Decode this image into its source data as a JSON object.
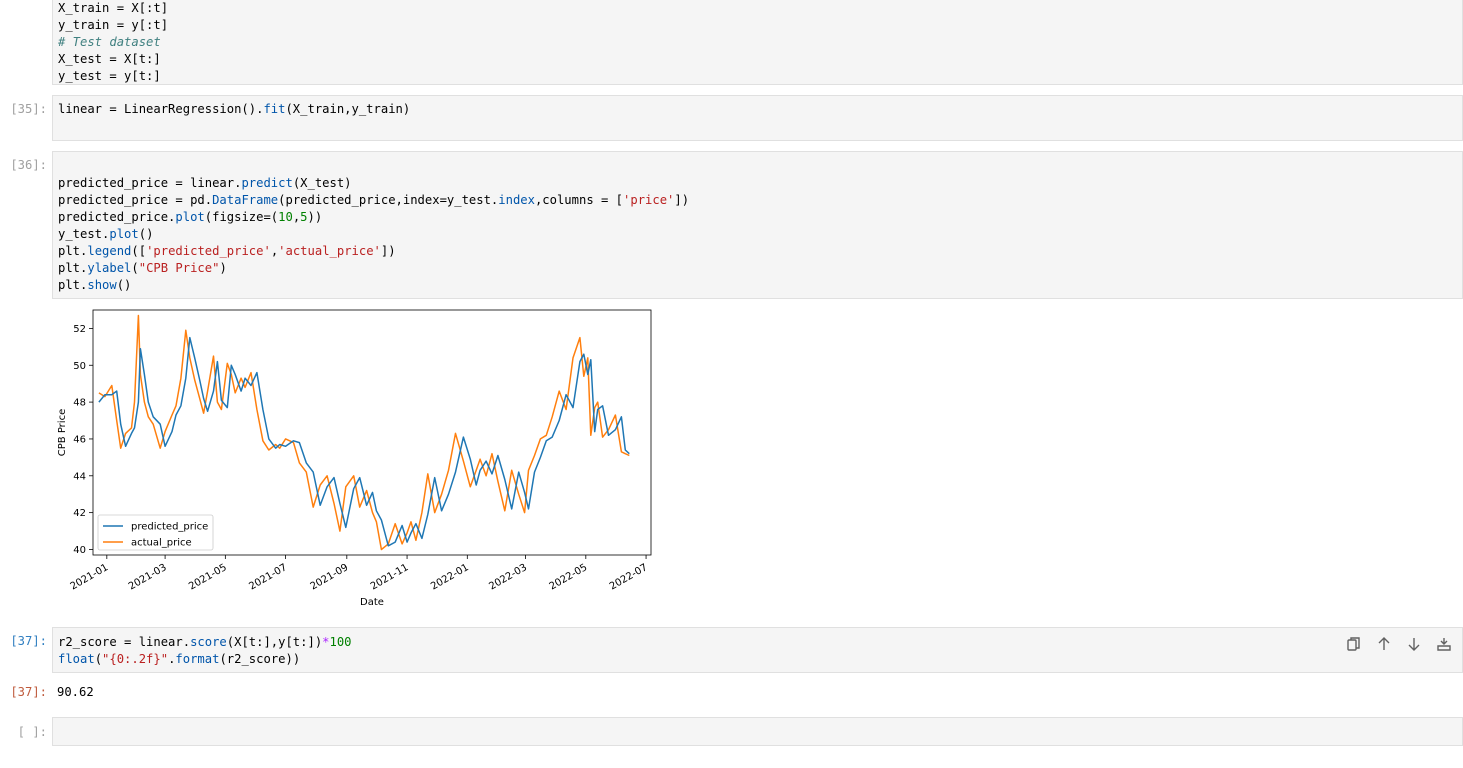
{
  "cells": {
    "top_cell": {
      "lines": [
        {
          "tokens": [
            {
              "t": "X_train = X[:t]",
              "c": ""
            }
          ]
        },
        {
          "tokens": [
            {
              "t": "y_train = y[:t]",
              "c": ""
            }
          ]
        },
        {
          "tokens": [
            {
              "t": "# Test dataset",
              "c": "cm"
            }
          ]
        },
        {
          "tokens": [
            {
              "t": "X_test = X[t:]",
              "c": ""
            }
          ]
        },
        {
          "tokens": [
            {
              "t": "y_test = y[t:]",
              "c": ""
            }
          ]
        }
      ]
    },
    "cell_35": {
      "prompt": "[35]:",
      "lines": [
        {
          "tokens": [
            {
              "t": "linear = LinearRegression().",
              "c": ""
            },
            {
              "t": "fit",
              "c": "ak"
            },
            {
              "t": "(X_train,y_train)",
              "c": ""
            }
          ]
        }
      ]
    },
    "cell_36": {
      "prompt": "[36]:",
      "lines": [
        {
          "tokens": [
            {
              "t": "",
              "c": ""
            }
          ]
        },
        {
          "tokens": [
            {
              "t": "predicted_price = linear.",
              "c": ""
            },
            {
              "t": "predict",
              "c": "ak"
            },
            {
              "t": "(X_test)",
              "c": ""
            }
          ]
        },
        {
          "tokens": [
            {
              "t": "predicted_price = pd.",
              "c": ""
            },
            {
              "t": "DataFrame",
              "c": "ak"
            },
            {
              "t": "(predicted_price,index=y_test.",
              "c": ""
            },
            {
              "t": "index",
              "c": "ak"
            },
            {
              "t": ",columns = [",
              "c": ""
            },
            {
              "t": "'price'",
              "c": "st"
            },
            {
              "t": "])",
              "c": ""
            }
          ]
        },
        {
          "tokens": [
            {
              "t": "predicted_price.",
              "c": ""
            },
            {
              "t": "plot",
              "c": "ak"
            },
            {
              "t": "(figsize=(",
              "c": ""
            },
            {
              "t": "10",
              "c": "nm"
            },
            {
              "t": ",",
              "c": ""
            },
            {
              "t": "5",
              "c": "nm"
            },
            {
              "t": "))",
              "c": ""
            }
          ]
        },
        {
          "tokens": [
            {
              "t": "y_test.",
              "c": ""
            },
            {
              "t": "plot",
              "c": "ak"
            },
            {
              "t": "()",
              "c": ""
            }
          ]
        },
        {
          "tokens": [
            {
              "t": "plt.",
              "c": ""
            },
            {
              "t": "legend",
              "c": "ak"
            },
            {
              "t": "([",
              "c": ""
            },
            {
              "t": "'predicted_price'",
              "c": "st"
            },
            {
              "t": ",",
              "c": ""
            },
            {
              "t": "'actual_price'",
              "c": "st"
            },
            {
              "t": "])",
              "c": ""
            }
          ]
        },
        {
          "tokens": [
            {
              "t": "plt.",
              "c": ""
            },
            {
              "t": "ylabel",
              "c": "ak"
            },
            {
              "t": "(",
              "c": ""
            },
            {
              "t": "\"CPB Price\"",
              "c": "st"
            },
            {
              "t": ")",
              "c": ""
            }
          ]
        },
        {
          "tokens": [
            {
              "t": "plt.",
              "c": ""
            },
            {
              "t": "show",
              "c": "ak"
            },
            {
              "t": "()",
              "c": ""
            }
          ]
        }
      ]
    },
    "cell_37": {
      "prompt": "[37]:",
      "output_prompt": "[37]:",
      "output": "90.62",
      "lines": [
        {
          "tokens": [
            {
              "t": "r2_score = linear.",
              "c": ""
            },
            {
              "t": "score",
              "c": "ak"
            },
            {
              "t": "(X[t:],y[t:])",
              "c": ""
            },
            {
              "t": "*",
              "c": "op"
            },
            {
              "t": "100",
              "c": "nm"
            }
          ]
        },
        {
          "tokens": [
            {
              "t": "float",
              "c": "ak"
            },
            {
              "t": "(",
              "c": ""
            },
            {
              "t": "\"{0:.2f}\"",
              "c": "st"
            },
            {
              "t": ".",
              "c": ""
            },
            {
              "t": "format",
              "c": "ak"
            },
            {
              "t": "(r2_score))",
              "c": ""
            }
          ]
        }
      ]
    },
    "empty_cell": {
      "prompt": "[ ]:"
    }
  },
  "toolbar": {
    "icons": [
      "duplicate-icon",
      "move-up-icon",
      "move-down-icon",
      "insert-below-icon"
    ]
  },
  "chart_data": {
    "type": "line",
    "title": "",
    "xlabel": "Date",
    "ylabel": "CPB Price",
    "ylim": [
      39.7,
      53.0
    ],
    "yticks": [
      40,
      42,
      44,
      46,
      48,
      50,
      52
    ],
    "xlim": [
      "2020-12-18",
      "2022-07-06"
    ],
    "xticks": [
      "2021-01",
      "2021-03",
      "2021-05",
      "2021-07",
      "2021-09",
      "2021-11",
      "2022-01",
      "2022-03",
      "2022-05",
      "2022-07"
    ],
    "legend_position": "lower-left",
    "grid": false,
    "colors": {
      "predicted_price": "#1f77b4",
      "actual_price": "#ff7f0e"
    },
    "series": [
      {
        "name": "actual_price",
        "x": [
          "2020-12-24",
          "2020-12-30",
          "2021-01-06",
          "2021-01-11",
          "2021-01-15",
          "2021-01-20",
          "2021-01-26",
          "2021-01-29",
          "2021-02-02",
          "2021-02-04",
          "2021-02-08",
          "2021-02-12",
          "2021-02-17",
          "2021-02-24",
          "2021-03-01",
          "2021-03-08",
          "2021-03-12",
          "2021-03-17",
          "2021-03-22",
          "2021-03-26",
          "2021-03-31",
          "2021-04-05",
          "2021-04-09",
          "2021-04-13",
          "2021-04-19",
          "2021-04-23",
          "2021-04-27",
          "2021-05-03",
          "2021-05-07",
          "2021-05-11",
          "2021-05-17",
          "2021-05-21",
          "2021-05-27",
          "2021-06-02",
          "2021-06-08",
          "2021-06-14",
          "2021-06-21",
          "2021-06-25",
          "2021-07-01",
          "2021-07-09",
          "2021-07-15",
          "2021-07-22",
          "2021-07-29",
          "2021-08-05",
          "2021-08-12",
          "2021-08-19",
          "2021-08-25",
          "2021-08-31",
          "2021-09-08",
          "2021-09-14",
          "2021-09-21",
          "2021-09-27",
          "2021-10-01",
          "2021-10-06",
          "2021-10-13",
          "2021-10-20",
          "2021-10-27",
          "2021-11-01",
          "2021-11-05",
          "2021-11-10",
          "2021-11-16",
          "2021-11-22",
          "2021-11-29",
          "2021-12-06",
          "2021-12-13",
          "2021-12-20",
          "2021-12-28",
          "2022-01-04",
          "2022-01-10",
          "2022-01-14",
          "2022-01-20",
          "2022-01-26",
          "2022-02-01",
          "2022-02-08",
          "2022-02-15",
          "2022-02-22",
          "2022-02-28",
          "2022-03-04",
          "2022-03-10",
          "2022-03-16",
          "2022-03-22",
          "2022-03-28",
          "2022-04-04",
          "2022-04-11",
          "2022-04-18",
          "2022-04-25",
          "2022-04-29",
          "2022-05-03",
          "2022-05-06",
          "2022-05-10",
          "2022-05-13",
          "2022-05-18",
          "2022-05-24",
          "2022-05-31",
          "2022-06-06",
          "2022-06-10",
          "2022-06-14"
        ],
        "y": [
          48.5,
          48.3,
          48.9,
          47.0,
          45.5,
          46.3,
          46.6,
          48.0,
          52.7,
          49.5,
          48.0,
          47.2,
          46.8,
          45.5,
          46.4,
          47.3,
          47.8,
          49.3,
          51.9,
          50.4,
          49.2,
          48.2,
          47.4,
          48.6,
          50.5,
          48.0,
          47.6,
          50.1,
          49.5,
          48.5,
          49.3,
          48.8,
          49.6,
          47.6,
          45.9,
          45.4,
          45.7,
          45.5,
          46.0,
          45.8,
          44.7,
          44.2,
          42.3,
          43.5,
          44.0,
          42.5,
          41.0,
          43.4,
          44.0,
          42.3,
          43.2,
          42.0,
          41.5,
          40.0,
          40.3,
          41.4,
          40.3,
          40.9,
          41.5,
          40.5,
          42.0,
          44.1,
          42.0,
          43.0,
          44.3,
          46.3,
          44.8,
          43.4,
          44.3,
          44.9,
          44.0,
          45.2,
          43.7,
          42.1,
          44.3,
          43.0,
          42.0,
          44.3,
          45.1,
          46.0,
          46.2,
          47.2,
          48.6,
          47.6,
          50.4,
          51.5,
          49.4,
          50.4,
          46.2,
          47.7,
          48.0,
          46.1,
          46.5,
          47.3,
          45.3,
          45.2,
          45.1
        ]
      },
      {
        "name": "predicted_price",
        "x": [
          "2020-12-24",
          "2020-12-30",
          "2021-01-06",
          "2021-01-11",
          "2021-01-15",
          "2021-01-20",
          "2021-01-26",
          "2021-01-29",
          "2021-02-02",
          "2021-02-04",
          "2021-02-08",
          "2021-02-12",
          "2021-02-17",
          "2021-02-24",
          "2021-03-01",
          "2021-03-08",
          "2021-03-12",
          "2021-03-17",
          "2021-03-22",
          "2021-03-26",
          "2021-03-31",
          "2021-04-05",
          "2021-04-09",
          "2021-04-13",
          "2021-04-19",
          "2021-04-23",
          "2021-04-27",
          "2021-05-03",
          "2021-05-07",
          "2021-05-11",
          "2021-05-17",
          "2021-05-21",
          "2021-05-27",
          "2021-06-02",
          "2021-06-08",
          "2021-06-14",
          "2021-06-21",
          "2021-06-25",
          "2021-07-01",
          "2021-07-09",
          "2021-07-15",
          "2021-07-22",
          "2021-07-29",
          "2021-08-05",
          "2021-08-12",
          "2021-08-19",
          "2021-08-25",
          "2021-08-31",
          "2021-09-08",
          "2021-09-14",
          "2021-09-21",
          "2021-09-27",
          "2021-10-01",
          "2021-10-06",
          "2021-10-13",
          "2021-10-20",
          "2021-10-27",
          "2021-11-01",
          "2021-11-05",
          "2021-11-10",
          "2021-11-16",
          "2021-11-22",
          "2021-11-29",
          "2021-12-06",
          "2021-12-13",
          "2021-12-20",
          "2021-12-28",
          "2022-01-04",
          "2022-01-10",
          "2022-01-14",
          "2022-01-20",
          "2022-01-26",
          "2022-02-01",
          "2022-02-08",
          "2022-02-15",
          "2022-02-22",
          "2022-02-28",
          "2022-03-04",
          "2022-03-10",
          "2022-03-16",
          "2022-03-22",
          "2022-03-28",
          "2022-04-04",
          "2022-04-11",
          "2022-04-18",
          "2022-04-25",
          "2022-04-29",
          "2022-05-03",
          "2022-05-06",
          "2022-05-10",
          "2022-05-13",
          "2022-05-18",
          "2022-05-24",
          "2022-05-31",
          "2022-06-06",
          "2022-06-10",
          "2022-06-14"
        ],
        "y": [
          48.0,
          48.4,
          48.4,
          48.6,
          46.8,
          45.6,
          46.3,
          46.6,
          48.0,
          50.9,
          49.5,
          48.0,
          47.2,
          46.8,
          45.6,
          46.4,
          47.3,
          47.8,
          49.3,
          51.5,
          50.4,
          49.2,
          48.2,
          47.5,
          48.6,
          50.2,
          48.1,
          47.7,
          50.0,
          49.5,
          48.6,
          49.3,
          48.9,
          49.6,
          47.6,
          46.0,
          45.5,
          45.7,
          45.6,
          45.9,
          45.8,
          44.7,
          44.2,
          42.4,
          43.4,
          43.9,
          42.5,
          41.2,
          43.3,
          43.9,
          42.4,
          43.1,
          42.1,
          41.6,
          40.2,
          40.4,
          41.3,
          40.4,
          40.9,
          41.4,
          40.6,
          41.9,
          43.9,
          42.1,
          43.0,
          44.2,
          46.1,
          44.9,
          43.5,
          44.3,
          44.8,
          44.1,
          45.1,
          43.8,
          42.2,
          44.2,
          43.1,
          42.2,
          44.2,
          45.0,
          45.9,
          46.1,
          47.0,
          48.4,
          47.7,
          50.2,
          50.6,
          49.5,
          50.3,
          46.4,
          47.6,
          47.8,
          46.2,
          46.5,
          47.2,
          45.4,
          45.2
        ]
      }
    ]
  }
}
